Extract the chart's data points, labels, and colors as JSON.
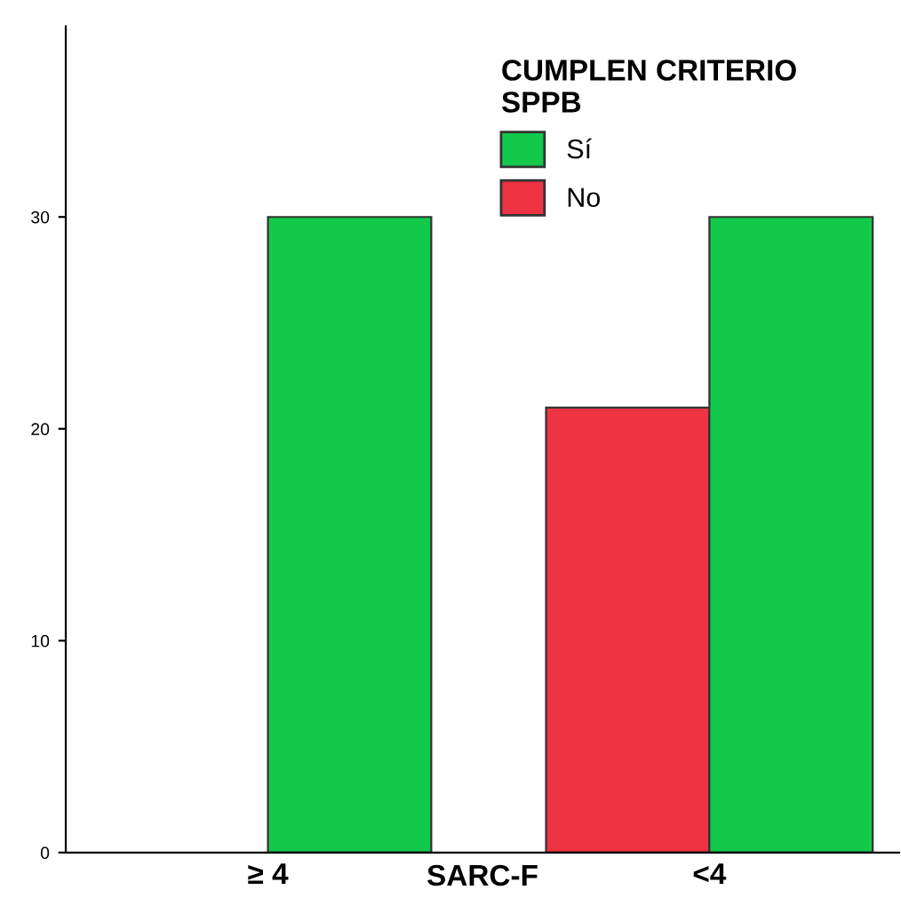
{
  "chart_data": {
    "type": "bar",
    "categories": [
      "≥ 4",
      "<4"
    ],
    "xlabel": "SARC-F",
    "legend_title": "CUMPLEN CRITERIO\nSPPB",
    "series": [
      {
        "name": "No",
        "color": "#ee3342",
        "values": [
          null,
          21
        ]
      },
      {
        "name": "Sí",
        "color": "#12c94a",
        "values": [
          30,
          30
        ]
      }
    ],
    "ylim": [
      0,
      39
    ],
    "yticks": [
      0,
      10,
      20,
      30
    ],
    "grid": false,
    "legend": "top"
  }
}
